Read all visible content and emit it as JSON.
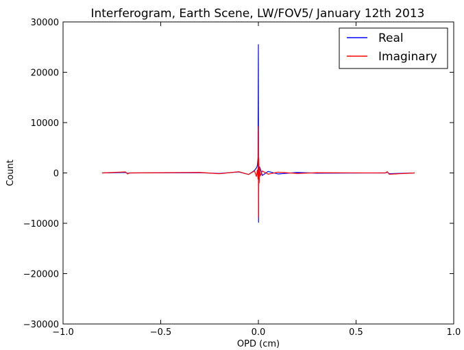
{
  "chart_data": {
    "type": "line",
    "title": "Interferogram, Earth Scene, LW/FOV5/ January 12th 2013",
    "xlabel": "OPD (cm)",
    "ylabel": "Count",
    "xlim": [
      -1.0,
      1.0
    ],
    "ylim": [
      -30000,
      30000
    ],
    "x_ticks": [
      -1.0,
      -0.5,
      0.0,
      0.5,
      1.0
    ],
    "x_tick_labels": [
      "−1.0",
      "−0.5",
      "0.0",
      "0.5",
      "1.0"
    ],
    "y_ticks": [
      -30000,
      -20000,
      -10000,
      0,
      10000,
      20000,
      30000
    ],
    "y_tick_labels": [
      "−30000",
      "−20000",
      "−10000",
      "0",
      "10000",
      "20000",
      "30000"
    ],
    "grid": false,
    "legend_position": "top-right",
    "series": [
      {
        "name": "Real",
        "color": "#0000ff",
        "x": [
          -0.8,
          -0.68,
          -0.67,
          -0.66,
          -0.3,
          -0.2,
          -0.1,
          -0.05,
          -0.02,
          -0.01,
          -0.005,
          -0.002,
          0.0,
          0.001,
          0.002,
          0.004,
          0.006,
          0.01,
          0.02,
          0.05,
          0.1,
          0.2,
          0.3,
          0.65,
          0.66,
          0.67,
          0.8
        ],
        "y": [
          0,
          100,
          -100,
          0,
          50,
          -100,
          200,
          -300,
          500,
          1000,
          1500,
          3000,
          25500,
          -9800,
          2000,
          -1500,
          1200,
          800,
          -500,
          300,
          -200,
          100,
          -50,
          0,
          150,
          -150,
          0
        ]
      },
      {
        "name": "Imaginary",
        "color": "#ff0000",
        "x": [
          -0.8,
          -0.68,
          -0.67,
          -0.66,
          -0.3,
          -0.2,
          -0.1,
          -0.05,
          -0.02,
          -0.01,
          -0.005,
          -0.002,
          0.0,
          0.001,
          0.002,
          0.004,
          0.006,
          0.01,
          0.02,
          0.05,
          0.1,
          0.2,
          0.3,
          0.65,
          0.66,
          0.67,
          0.8
        ],
        "y": [
          0,
          200,
          -200,
          0,
          100,
          -150,
          250,
          -300,
          400,
          -700,
          600,
          -1200,
          9200,
          -8800,
          3000,
          -2000,
          1000,
          -600,
          400,
          -250,
          150,
          -100,
          50,
          0,
          250,
          -250,
          0
        ]
      }
    ]
  }
}
